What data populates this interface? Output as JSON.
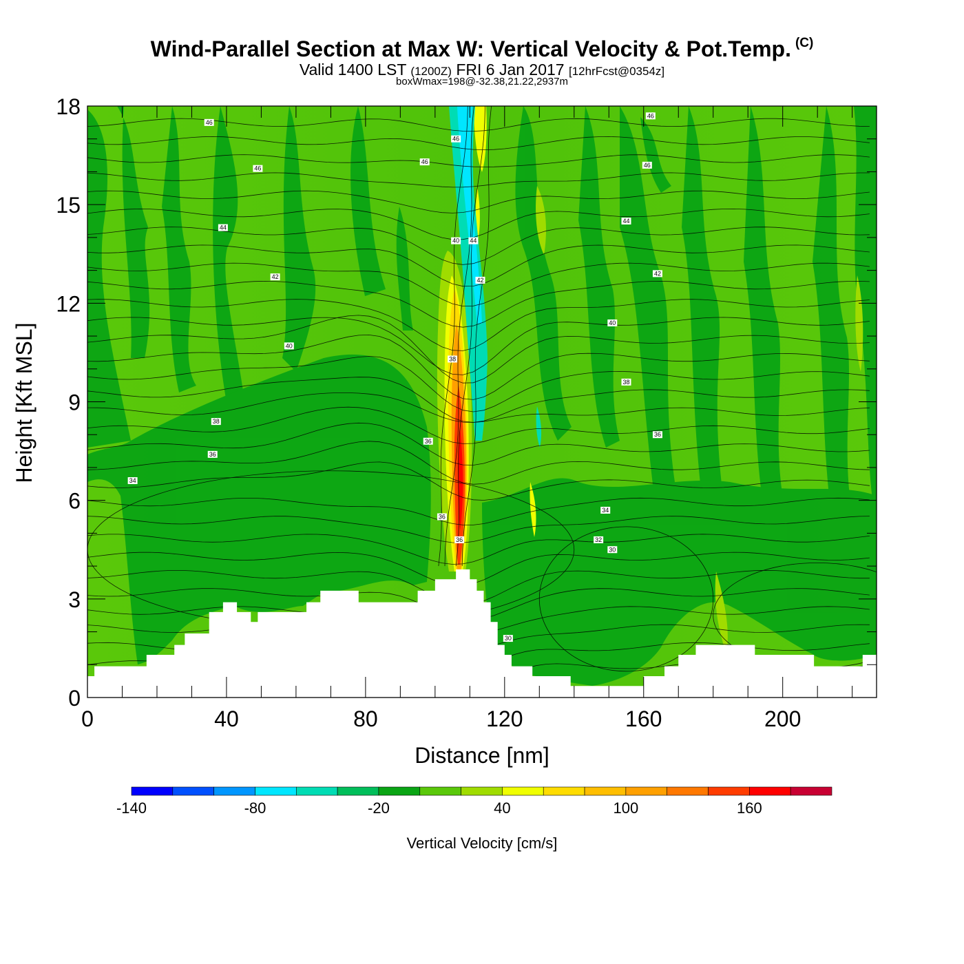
{
  "header": {
    "title": "Wind-Parallel Section at Max W: Vertical Velocity & Pot.Temp.",
    "copyright": "(C)",
    "valid_a": "Valid 1400 LST",
    "valid_b": "(1200Z)",
    "valid_c": "FRI 6 Jan 2017",
    "valid_d": "[12hrFcst@0354z]",
    "box": "boxWmax=198@-32.38,21.22,2937m"
  },
  "chart_data": {
    "type": "heatmap",
    "title": "Wind-Parallel Section at Max W: Vertical Velocity & Pot.Temp.",
    "xlabel": "Distance [nm]",
    "ylabel": "Height [Kft MSL]",
    "xlim": [
      0,
      227
    ],
    "ylim": [
      0,
      18
    ],
    "x_ticks": [
      0,
      40,
      80,
      120,
      160,
      200
    ],
    "y_ticks": [
      0,
      3,
      6,
      9,
      12,
      15,
      18
    ],
    "x_tick_labels": [
      "0",
      "40",
      "80",
      "120",
      "160",
      "200"
    ],
    "y_tick_labels": [
      "0",
      "3",
      "6",
      "9",
      "12",
      "15",
      "18"
    ],
    "colorbar": {
      "label": "Vertical Velocity [cm/s]",
      "levels": [
        -140,
        -120,
        -100,
        -80,
        -60,
        -40,
        -20,
        0,
        20,
        40,
        60,
        80,
        100,
        120,
        140,
        160,
        180,
        200
      ],
      "tick_values": [
        -140,
        -80,
        -20,
        40,
        100,
        160
      ],
      "tick_labels": [
        "-140",
        "-80",
        "-20",
        "40",
        "100",
        "160"
      ],
      "colors": [
        "#0000ff",
        "#0050ff",
        "#0096ff",
        "#00e6ff",
        "#00dcb4",
        "#00be5a",
        "#0aa514",
        "#5ac80a",
        "#a0dc00",
        "#f0ff00",
        "#ffdc00",
        "#ffbe00",
        "#ffa000",
        "#ff7800",
        "#ff3c00",
        "#ff0000",
        "#c80032"
      ]
    },
    "terrain_profile": {
      "x": [
        0,
        2,
        2,
        17,
        17,
        25,
        25,
        28,
        28,
        35,
        35,
        39,
        39,
        43,
        43,
        47,
        47,
        49,
        49,
        63,
        63,
        67,
        67,
        78,
        78,
        95,
        95,
        100,
        100,
        106,
        106,
        110,
        110,
        112,
        112,
        114,
        114,
        116,
        116,
        118,
        118,
        120,
        120,
        122,
        122,
        128,
        128,
        139,
        139,
        160,
        160,
        166,
        166,
        170,
        170,
        175,
        175,
        192,
        192,
        209,
        209,
        223,
        223,
        227
      ],
      "y": [
        0.65,
        0.65,
        0.95,
        0.95,
        1.3,
        1.3,
        1.6,
        1.6,
        1.95,
        1.95,
        2.6,
        2.6,
        2.9,
        2.9,
        2.6,
        2.6,
        2.3,
        2.3,
        2.6,
        2.6,
        2.9,
        2.9,
        3.25,
        3.25,
        2.9,
        2.9,
        3.25,
        3.25,
        3.6,
        3.6,
        3.9,
        3.9,
        3.6,
        3.6,
        3.25,
        3.25,
        2.9,
        2.9,
        2.3,
        2.3,
        1.6,
        1.6,
        1.3,
        1.3,
        0.95,
        0.95,
        0.65,
        0.65,
        0.35,
        0.35,
        0.65,
        0.65,
        0.95,
        0.95,
        1.3,
        1.3,
        1.6,
        1.6,
        1.3,
        1.3,
        0.95,
        0.95,
        1.3,
        1.3
      ]
    },
    "potential_temperature_contour_labels": [
      {
        "value": "46",
        "x": 35,
        "y": 17.5
      },
      {
        "value": "46",
        "x": 49,
        "y": 16.1
      },
      {
        "value": "46",
        "x": 97,
        "y": 16.3
      },
      {
        "value": "46",
        "x": 106,
        "y": 17.0
      },
      {
        "value": "46",
        "x": 162,
        "y": 17.7
      },
      {
        "value": "46",
        "x": 161,
        "y": 16.2
      },
      {
        "value": "44",
        "x": 39,
        "y": 14.3
      },
      {
        "value": "44",
        "x": 111,
        "y": 13.9
      },
      {
        "value": "44",
        "x": 155,
        "y": 14.5
      },
      {
        "value": "42",
        "x": 54,
        "y": 12.8
      },
      {
        "value": "42",
        "x": 113,
        "y": 12.7
      },
      {
        "value": "42",
        "x": 164,
        "y": 12.9
      },
      {
        "value": "40",
        "x": 106,
        "y": 13.9
      },
      {
        "value": "40",
        "x": 58,
        "y": 10.7
      },
      {
        "value": "40",
        "x": 151,
        "y": 11.4
      },
      {
        "value": "38",
        "x": 105,
        "y": 10.3
      },
      {
        "value": "38",
        "x": 37,
        "y": 8.4
      },
      {
        "value": "38",
        "x": 155,
        "y": 9.6
      },
      {
        "value": "36",
        "x": 36,
        "y": 7.4
      },
      {
        "value": "36",
        "x": 164,
        "y": 8.0
      },
      {
        "value": "36",
        "x": 98,
        "y": 7.8
      },
      {
        "value": "36",
        "x": 102,
        "y": 5.5
      },
      {
        "value": "36",
        "x": 107,
        "y": 4.8
      },
      {
        "value": "34",
        "x": 13,
        "y": 6.6
      },
      {
        "value": "34",
        "x": 149,
        "y": 5.7
      },
      {
        "value": "32",
        "x": 147,
        "y": 4.8
      },
      {
        "value": "30",
        "x": 151,
        "y": 4.5
      },
      {
        "value": "30",
        "x": 121,
        "y": 1.8
      }
    ]
  }
}
